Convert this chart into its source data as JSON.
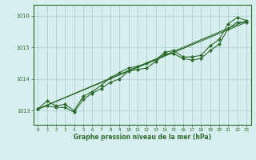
{
  "xlabel": "Graphe pression niveau de la mer (hPa)",
  "ylim": [
    1012.55,
    1016.35
  ],
  "xlim": [
    -0.5,
    23.5
  ],
  "yticks": [
    1013,
    1014,
    1015,
    1016
  ],
  "xticks": [
    0,
    1,
    2,
    3,
    4,
    5,
    6,
    7,
    8,
    9,
    10,
    11,
    12,
    13,
    14,
    15,
    16,
    17,
    18,
    19,
    20,
    21,
    22,
    23
  ],
  "bg_color": "#d7eeee",
  "grid_color": "#a8cccc",
  "line_color": "#2d6b2d",
  "line1_x": [
    0,
    1,
    2,
    3,
    4,
    5,
    6,
    7,
    8,
    9,
    10,
    11,
    12,
    13,
    14,
    15,
    16,
    17,
    18,
    19,
    20,
    21,
    22,
    23
  ],
  "line1_y": [
    1013.05,
    1013.3,
    1013.15,
    1013.2,
    1013.0,
    1013.45,
    1013.6,
    1013.8,
    1014.05,
    1014.2,
    1014.35,
    1014.4,
    1014.5,
    1014.6,
    1014.85,
    1014.9,
    1014.7,
    1014.7,
    1014.75,
    1015.05,
    1015.25,
    1015.75,
    1015.95,
    1015.85
  ],
  "line2_x": [
    0,
    1,
    2,
    3,
    4,
    5,
    6,
    7,
    8,
    9,
    10,
    11,
    12,
    13,
    14,
    15,
    16,
    17,
    18,
    19,
    20,
    21,
    22,
    23
  ],
  "line2_y": [
    1013.05,
    1013.15,
    1013.1,
    1013.1,
    1012.95,
    1013.35,
    1013.55,
    1013.7,
    1013.9,
    1014.0,
    1014.25,
    1014.3,
    1014.35,
    1014.55,
    1014.8,
    1014.8,
    1014.65,
    1014.6,
    1014.65,
    1014.9,
    1015.1,
    1015.6,
    1015.8,
    1015.8
  ],
  "line3_x": [
    0,
    23
  ],
  "line3_y": [
    1013.05,
    1015.85
  ],
  "line4_x": [
    0,
    23
  ],
  "line4_y": [
    1013.05,
    1015.8
  ]
}
